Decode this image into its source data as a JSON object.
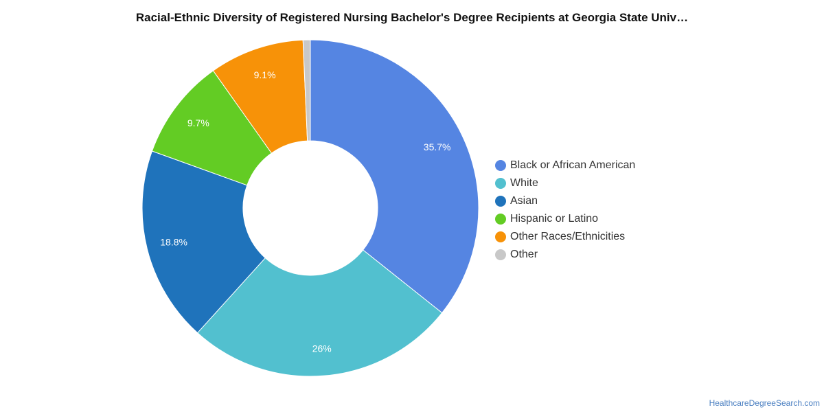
{
  "chart_data": {
    "type": "pie",
    "style": "donut",
    "title": "Racial-Ethnic Diversity of Registered Nursing Bachelor's Degree Recipients at Georgia State Univ…",
    "slices": [
      {
        "label": "Black or African American",
        "value": 35.7,
        "display": "35.7%",
        "color": "#5585e2"
      },
      {
        "label": "White",
        "value": 26,
        "display": "26%",
        "color": "#52c0cf"
      },
      {
        "label": "Asian",
        "value": 18.8,
        "display": "18.8%",
        "color": "#1f73bb"
      },
      {
        "label": "Hispanic or Latino",
        "value": 9.7,
        "display": "9.7%",
        "color": "#63cc24"
      },
      {
        "label": "Other Races/Ethnicities",
        "value": 9.1,
        "display": "9.1%",
        "color": "#f79208"
      },
      {
        "label": "Other",
        "value": 0.7,
        "display": "",
        "color": "#c8c8c8"
      }
    ],
    "legend_position": "right"
  },
  "source_text": "HealthcareDegreeSearch.com"
}
